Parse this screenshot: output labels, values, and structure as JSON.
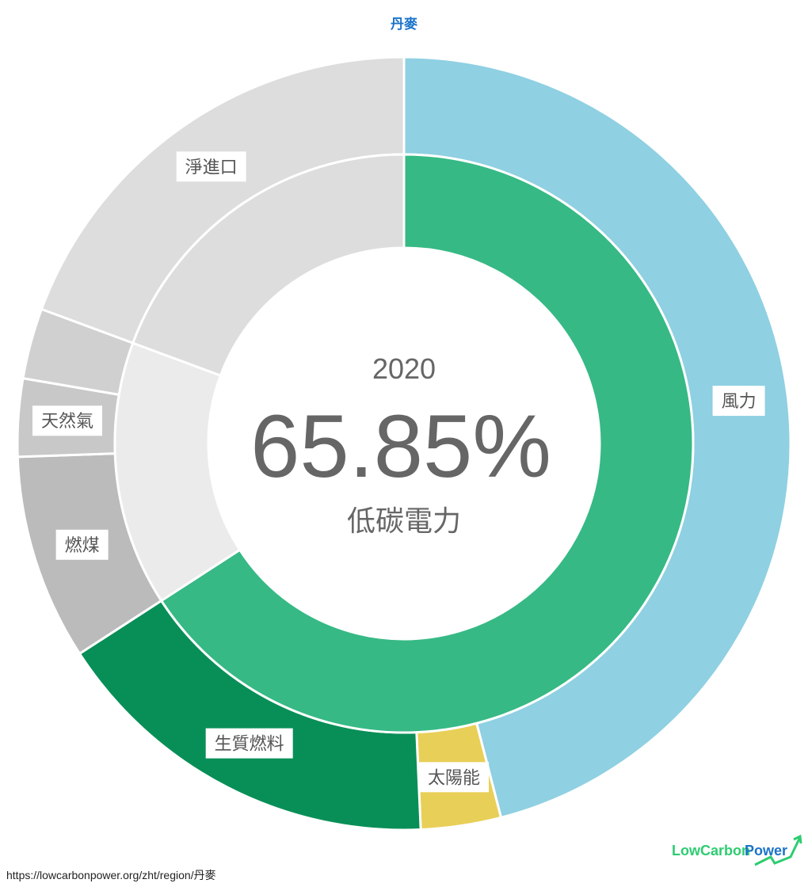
{
  "title": "丹麥",
  "center": {
    "year": "2020",
    "value": "65.85%",
    "label": "低碳電力"
  },
  "url": "https://lowcarbonpower.org/zht/region/丹麥",
  "logo": {
    "text_low": "LowCarbon",
    "text_power": "Power"
  },
  "chart_data": {
    "type": "pie",
    "subtype": "nested-donut",
    "outer": [
      {
        "name": "風力",
        "value": 45.96,
        "color": "#8fd0e2"
      },
      {
        "name": "太陽能",
        "value": 3.35,
        "color": "#e8cf57"
      },
      {
        "name": "生質燃料",
        "value": 16.54,
        "color": "#088f57"
      },
      {
        "name": "燃煤",
        "value": 8.6,
        "color": "#bbbbbb"
      },
      {
        "name": "天然氣",
        "value": 3.25,
        "color": "#c8c8c8"
      },
      {
        "name": "",
        "value": 2.95,
        "color": "#d0d0d0"
      },
      {
        "name": "淨進口",
        "value": 19.35,
        "color": "#dddddd"
      }
    ],
    "inner": [
      {
        "name": "低碳電力",
        "value": 65.85,
        "color": "#36b985"
      },
      {
        "name": "",
        "value": 14.8,
        "color": "#ebebeb"
      },
      {
        "name": "淨進口",
        "value": 19.35,
        "color": "#dddddd"
      }
    ]
  }
}
